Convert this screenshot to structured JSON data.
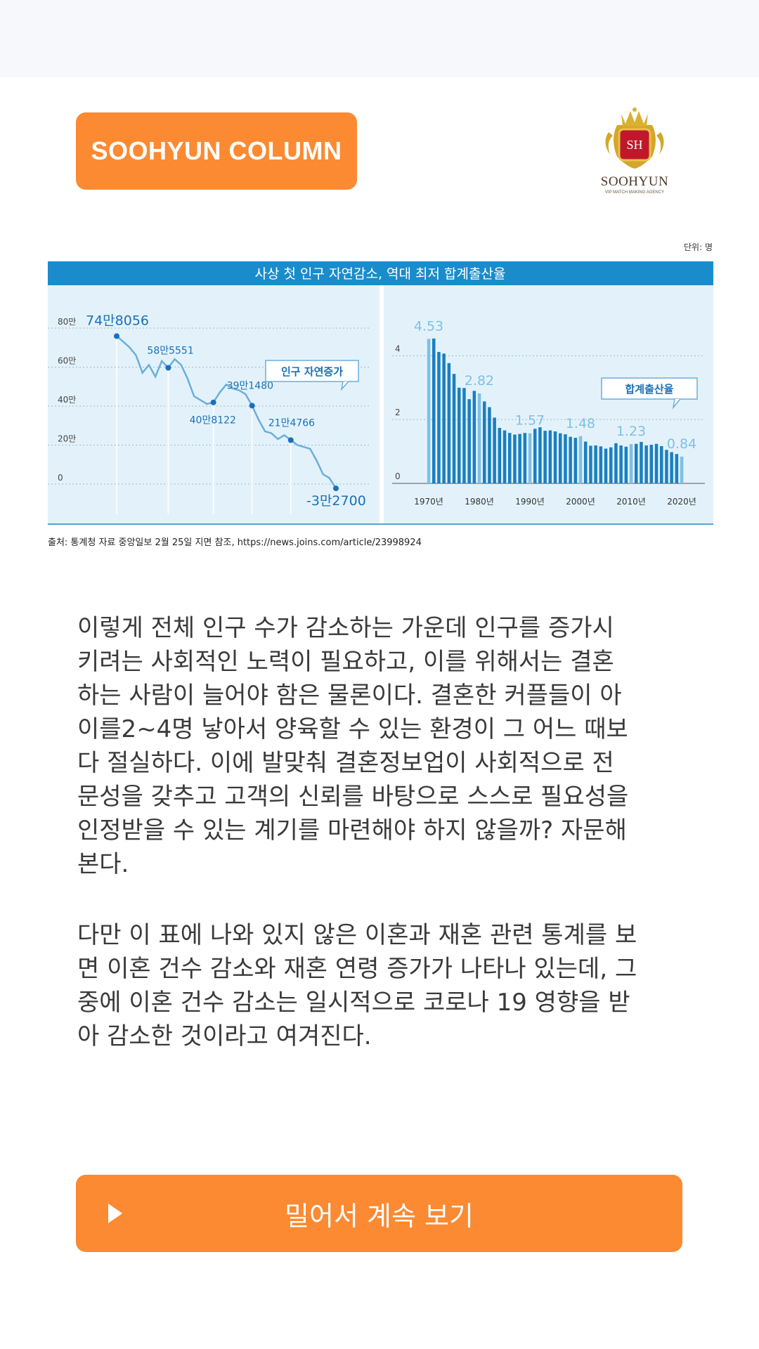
{
  "header": {
    "badge_label": "SOOHYUN COLUMN"
  },
  "logo": {
    "brand": "SOOHYUN",
    "tagline": "VIP MATCH MAKING AGENCY",
    "monogram": "SH"
  },
  "chart": {
    "unit_note": "단위: 명",
    "title": "사상 첫 인구 자연감소, 역대 최저 합계출산율",
    "source": "출처: 통계청 자료 중앙일보 2월 25일 지면 참조, https://news.joins.com/article/23998924",
    "colors": {
      "title_bar": "#1a8ccc",
      "panel_bg": "#e3f2fa",
      "line": "#6aaedc",
      "point": "#1a70b8",
      "bar_dark": "#1a7fc0",
      "bar_light": "#7fbfe6"
    }
  },
  "chart_data": [
    {
      "type": "line",
      "legend": "인구 자연증가",
      "y_ticks": [
        "80만",
        "60만",
        "40만",
        "20만",
        "0"
      ],
      "ylim": [
        0,
        800000
      ],
      "annotations": [
        "74만8056",
        "58만5551",
        "40만8122",
        "39만1480",
        "21만4766",
        "-3만2700"
      ],
      "values": [
        748056,
        720000,
        690000,
        650000,
        560000,
        600000,
        540000,
        620000,
        585551,
        630000,
        600000,
        530000,
        440000,
        420000,
        400000,
        408122,
        460000,
        500000,
        480000,
        470000,
        450000,
        391480,
        320000,
        260000,
        250000,
        220000,
        240000,
        214766,
        190000,
        180000,
        170000,
        110000,
        40000,
        20000,
        -32700
      ],
      "grid": true
    },
    {
      "type": "bar",
      "legend": "합계출산율",
      "y_ticks": [
        "4",
        "2",
        "0"
      ],
      "ylim": [
        0,
        4.8
      ],
      "x_ticks": [
        "1970년",
        "1980년",
        "1990년",
        "2000년",
        "2010년",
        "2020년"
      ],
      "annotations": [
        "4.53",
        "2.82",
        "1.57",
        "1.48",
        "1.23",
        "0.84"
      ],
      "values": [
        4.53,
        4.54,
        4.12,
        4.07,
        3.77,
        3.43,
        3.0,
        2.99,
        2.64,
        2.9,
        2.82,
        2.57,
        2.39,
        2.06,
        1.74,
        1.66,
        1.58,
        1.53,
        1.55,
        1.58,
        1.57,
        1.71,
        1.76,
        1.65,
        1.66,
        1.63,
        1.57,
        1.54,
        1.46,
        1.43,
        1.48,
        1.31,
        1.18,
        1.19,
        1.16,
        1.09,
        1.13,
        1.26,
        1.19,
        1.15,
        1.23,
        1.24,
        1.3,
        1.19,
        1.21,
        1.24,
        1.17,
        1.05,
        0.98,
        0.92,
        0.84
      ],
      "grid": true
    }
  ],
  "article": {
    "paragraph1": " 이렇게 전체 인구 수가 감소하는 가운데 인구를 증가시\n키려는 사회적인 노력이 필요하고, 이를 위해서는 결혼\n하는 사람이 늘어야 함은 물론이다. 결혼한 커플들이 아\n이를2~4명 낳아서 양육할 수 있는 환경이 그 어느 때보\n다 절실하다. 이에 발맞춰 결혼정보업이 사회적으로 전\n문성을 갖추고 고객의 신뢰를 바탕으로 스스로 필요성을\n인정받을 수 있는 계기를 마련해야 하지 않을까? 자문해\n본다.",
    "paragraph2": " 다만 이 표에 나와 있지 않은 이혼과 재혼 관련 통계를 보\n면 이혼 건수 감소와 재혼 연령 증가가 나타나 있는데, 그\n중에 이혼 건수 감소는 일시적으로 코로나 19 영향을 받\n아 감소한 것이라고 여겨진다."
  },
  "cta": {
    "label": "밀어서 계속 보기",
    "icon": "play-icon"
  }
}
